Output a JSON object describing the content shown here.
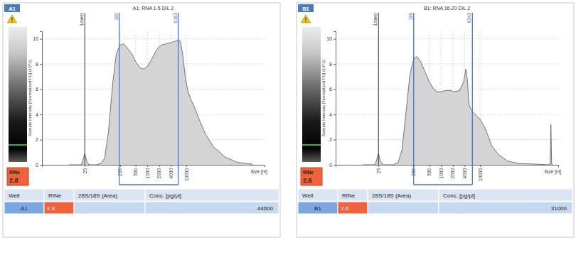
{
  "chart_data": [
    {
      "type": "area",
      "title": "A1: RNA 1-5 DIL 2",
      "well": "A1",
      "x_label": "Size [nt]",
      "y_label": "Sample Intensity [Normalized FU] (10^3)",
      "log": "x",
      "grid": true,
      "color": "#d4d4d4",
      "xlim": [
        2,
        1000000
      ],
      "ylim": [
        0,
        10.6
      ],
      "xticks": [
        25,
        200,
        500,
        1000,
        2000,
        4000,
        10000
      ],
      "yticks": [
        0,
        2,
        4,
        6,
        8,
        10
      ],
      "x": [
        10,
        20,
        22,
        25,
        28,
        32,
        50,
        65,
        80,
        100,
        130,
        160,
        200,
        250,
        300,
        400,
        500,
        650,
        800,
        1000,
        1300,
        1700,
        2200,
        3000,
        4000,
        5000,
        6000,
        7000,
        8000,
        9500,
        11000,
        13000,
        16000,
        20000,
        30000,
        50000,
        100000,
        200000,
        500000
      ],
      "values": [
        0,
        0,
        0.3,
        0.9,
        0.3,
        0,
        0,
        0.1,
        0.5,
        2.5,
        6.5,
        8.8,
        9.5,
        9.6,
        9.3,
        8.8,
        8.2,
        7.7,
        7.6,
        7.8,
        8.4,
        9.1,
        9.5,
        9.6,
        9.7,
        9.8,
        9.9,
        9.8,
        8.8,
        6.8,
        5.8,
        5.2,
        4.6,
        3.8,
        2.5,
        1.4,
        0.6,
        0.2,
        0.05
      ],
      "markers": [
        {
          "value": 25,
          "label": "Lower"
        }
      ],
      "region": [
        190,
        6163
      ],
      "rin_label": "RINe",
      "rin": 2.8,
      "table": {
        "header": [
          "Well",
          "RINe",
          "28S/18S (Area)",
          "Conc. [pg/µl]"
        ],
        "rows": [
          [
            "A1",
            2.8,
            null,
            44600
          ]
        ]
      }
    },
    {
      "type": "area",
      "title": "B1: RNA 16-20 DIL 2",
      "well": "B1",
      "x_label": "Size [nt]",
      "y_label": "Sample Intensity [Normalized FU] (10^3)",
      "log": "x",
      "grid": true,
      "color": "#d4d4d4",
      "xlim": [
        2,
        1000000
      ],
      "ylim": [
        0,
        10.6
      ],
      "xticks": [
        25,
        200,
        500,
        1000,
        2000,
        4000,
        10000
      ],
      "yticks": [
        0,
        2,
        4,
        6,
        8,
        10
      ],
      "x": [
        10,
        20,
        22,
        25,
        28,
        32,
        60,
        80,
        100,
        130,
        160,
        200,
        240,
        300,
        400,
        500,
        650,
        800,
        1000,
        1300,
        1700,
        2200,
        3000,
        3800,
        4300,
        4700,
        5200,
        6000,
        7000,
        8000,
        10000,
        13000,
        16000,
        20000,
        30000,
        50000,
        100000,
        300000,
        550000,
        620000,
        650000,
        680000,
        720000
      ],
      "values": [
        0,
        0,
        0.3,
        0.9,
        0.3,
        0,
        0,
        0.2,
        1.2,
        4.5,
        7.2,
        8.4,
        8.6,
        8.2,
        7.3,
        6.6,
        6.0,
        5.8,
        5.8,
        5.9,
        5.9,
        5.8,
        5.9,
        6.6,
        7.6,
        6.8,
        4.8,
        4.3,
        4.1,
        3.9,
        3.6,
        3.0,
        2.3,
        1.5,
        0.8,
        0.3,
        0.1,
        0.05,
        0,
        0.05,
        3.2,
        0.05,
        0
      ],
      "markers": [
        {
          "value": 25,
          "label": "Lower"
        }
      ],
      "region": [
        199,
        6343
      ],
      "rin_label": "RINe",
      "rin": 2.6,
      "table": {
        "header": [
          "Well",
          "RINe",
          "28S/18S (Area)",
          "Conc. [pg/µl]"
        ],
        "rows": [
          [
            "B1",
            2.6,
            null,
            31000
          ]
        ]
      }
    }
  ]
}
